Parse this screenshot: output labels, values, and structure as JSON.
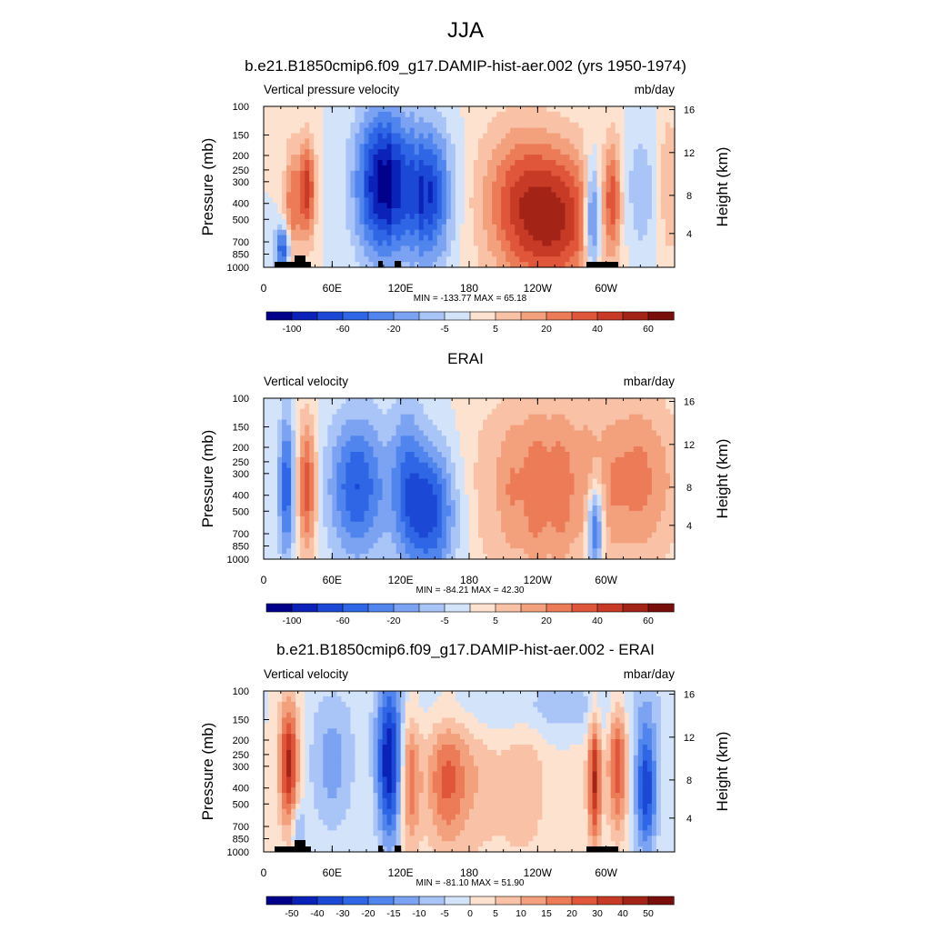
{
  "figure": {
    "title": "JJA"
  },
  "chart_data": [
    {
      "type": "heatmap",
      "title": "b.e21.B1850cmip6.f09_g17.DAMIP-hist-aer.002 (yrs 1950-1974)",
      "left_label": "Vertical pressure velocity",
      "right_label": "mb/day",
      "ylabel": "Pressure (mb)",
      "y2label": "Height (km)",
      "xticks": [
        "0",
        "60E",
        "120E",
        "180",
        "120W",
        "60W"
      ],
      "yticks": [
        "100",
        "150",
        "200",
        "250",
        "300",
        "400",
        "500",
        "700",
        "850",
        "1000"
      ],
      "y2ticks": [
        "4",
        "8",
        "12",
        "16"
      ],
      "stats": "MIN = -133.77  MAX =  65.18",
      "colorbar_labels": [
        "-100",
        "-60",
        "-20",
        "-5",
        "5",
        "20",
        "40",
        "60"
      ],
      "topography": true
    },
    {
      "type": "heatmap",
      "title": "ERAI",
      "left_label": "Vertical velocity",
      "right_label": "mbar/day",
      "ylabel": "Pressure (mb)",
      "y2label": "Height (km)",
      "xticks": [
        "0",
        "60E",
        "120E",
        "180",
        "120W",
        "60W"
      ],
      "yticks": [
        "100",
        "150",
        "200",
        "250",
        "300",
        "400",
        "500",
        "700",
        "850",
        "1000"
      ],
      "y2ticks": [
        "4",
        "8",
        "12",
        "16"
      ],
      "stats": "MIN = -84.21  MAX =  42.30",
      "colorbar_labels": [
        "-100",
        "-60",
        "-20",
        "-5",
        "5",
        "20",
        "40",
        "60"
      ],
      "topography": false
    },
    {
      "type": "heatmap",
      "title": "b.e21.B1850cmip6.f09_g17.DAMIP-hist-aer.002 - ERAI",
      "left_label": "Vertical velocity",
      "right_label": "mbar/day",
      "ylabel": "Pressure (mb)",
      "y2label": "Height (km)",
      "xticks": [
        "0",
        "60E",
        "120E",
        "180",
        "120W",
        "60W"
      ],
      "yticks": [
        "100",
        "150",
        "200",
        "250",
        "300",
        "400",
        "500",
        "700",
        "850",
        "1000"
      ],
      "y2ticks": [
        "4",
        "8",
        "12",
        "16"
      ],
      "stats": "MIN = -81.10  MAX =  51.90",
      "colorbar_labels": [
        "-50",
        "-40",
        "-30",
        "-20",
        "-15",
        "-10",
        "-5",
        "0",
        "5",
        "10",
        "15",
        "20",
        "30",
        "40",
        "50"
      ],
      "topography": true
    }
  ],
  "palette": [
    "#00008a",
    "#0a22b8",
    "#1c48d6",
    "#2f66e6",
    "#5085ee",
    "#7ba3f2",
    "#a9c4f6",
    "#d3e4fa",
    "#fde2cf",
    "#f9c2a6",
    "#f3a07d",
    "#ec7b58",
    "#e0563a",
    "#c73b26",
    "#a32417",
    "#7a0e0a"
  ]
}
